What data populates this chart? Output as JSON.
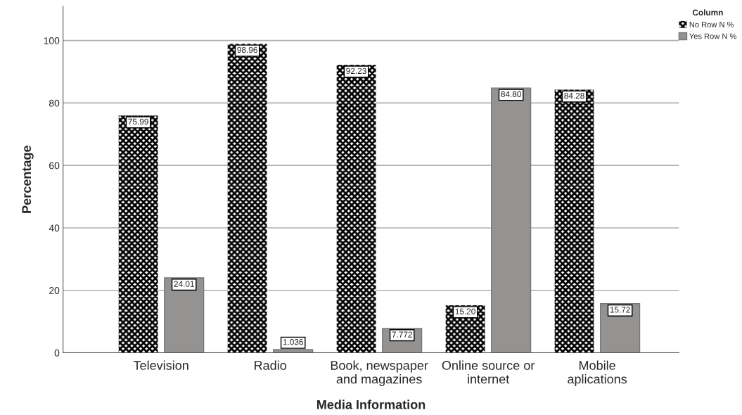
{
  "chart_data": {
    "type": "bar",
    "xlabel": "Media Information",
    "ylabel": "Percentage",
    "legend_title": "Column",
    "categories": [
      "Television",
      "Radio",
      "Book, newspaper\nand magazines",
      "Online source or\ninternet",
      "Mobile\naplications"
    ],
    "series": [
      {
        "name": "No Row N %",
        "color": "#000000",
        "values": [
          75.99,
          98.96,
          92.23,
          15.2,
          84.28
        ],
        "value_labels": [
          "75.99",
          "98.96",
          "92.23",
          "15.20",
          "84.28"
        ]
      },
      {
        "name": "Yes Row N %",
        "color": "#959292",
        "values": [
          24.01,
          1.036,
          7.772,
          84.8,
          15.72
        ],
        "value_labels": [
          "24.01",
          "1.036",
          "7.772",
          "84.80",
          "15.72"
        ]
      }
    ],
    "ylim": [
      0,
      111
    ],
    "yticks": [
      0,
      20,
      40,
      60,
      80,
      100
    ],
    "grid": "y",
    "legend": "top right"
  }
}
